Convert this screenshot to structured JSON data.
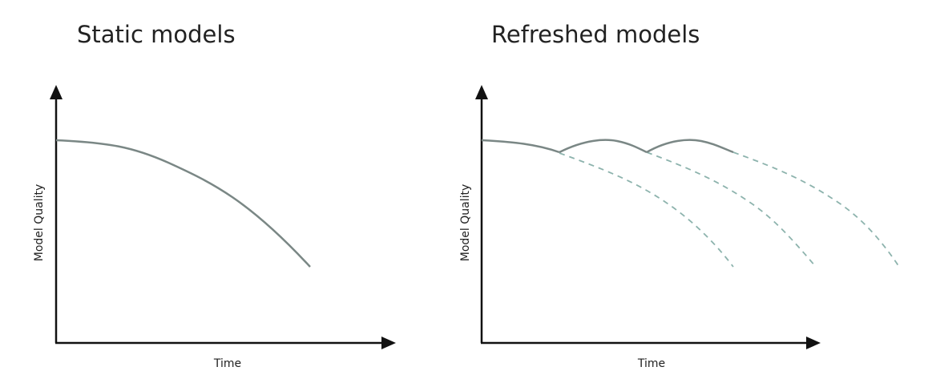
{
  "panels": [
    {
      "title": "Static models",
      "xlabel": "Time",
      "ylabel": "Model Quality"
    },
    {
      "title": "Refreshed models",
      "xlabel": "Time",
      "ylabel": "Model Quality"
    }
  ],
  "colors": {
    "axis": "#111111",
    "curve": "#7a8785",
    "dashed": "#8db3ad",
    "text": "#222222"
  }
}
